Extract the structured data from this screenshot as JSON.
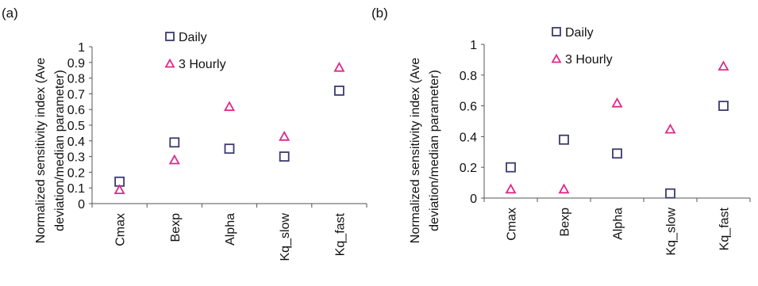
{
  "chart_data": [
    {
      "panel_label": "(a)",
      "type": "scatter",
      "categories": [
        "Cmax",
        "Bexp",
        "Alpha",
        "Kq_slow",
        "Kq_fast"
      ],
      "ylabel": "Normalized sensitivity index (Ave deviation/median parameter)",
      "ylabel_lines": [
        "Normalized sensitivity index (Ave",
        "deviation/median parameter)"
      ],
      "ylim": [
        0,
        1
      ],
      "yticks": [
        "0",
        "0.1",
        "0.2",
        "0.3",
        "0.4",
        "0.5",
        "0.6",
        "0.7",
        "0.8",
        "0.9",
        "1"
      ],
      "grid": false,
      "legend_position": "top",
      "series": [
        {
          "name": "Daily",
          "marker": "square",
          "color": "#3b3b6e",
          "values": [
            0.14,
            0.39,
            0.35,
            0.3,
            0.72
          ]
        },
        {
          "name": "3 Hourly",
          "marker": "triangle",
          "color": "#e0288c",
          "values": [
            0.09,
            0.28,
            0.62,
            0.43,
            0.87
          ]
        }
      ]
    },
    {
      "panel_label": "(b)",
      "type": "scatter",
      "categories": [
        "Cmax",
        "Bexp",
        "Alpha",
        "Kq_slow",
        "Kq_fast"
      ],
      "ylabel": "Normalized sensitivity index (Ave deviation/median parameter)",
      "ylabel_lines": [
        "Normalized sensitivity index (Ave",
        "deviation/median parameter)"
      ],
      "ylim": [
        0,
        1
      ],
      "yticks": [
        "0",
        "0.2",
        "0.4",
        "0.6",
        "0.8",
        "1"
      ],
      "grid": false,
      "legend_position": "top",
      "series": [
        {
          "name": "Daily",
          "marker": "square",
          "color": "#3b3b6e",
          "values": [
            0.2,
            0.38,
            0.29,
            0.03,
            0.6
          ]
        },
        {
          "name": "3 Hourly",
          "marker": "triangle",
          "color": "#e0288c",
          "values": [
            0.06,
            0.06,
            0.62,
            0.45,
            0.86
          ]
        }
      ]
    }
  ]
}
